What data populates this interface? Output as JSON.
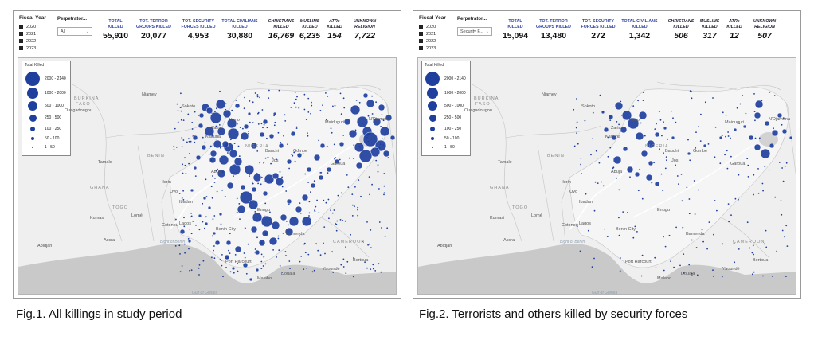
{
  "dashboards": [
    {
      "fiscal_year": {
        "title": "Fiscal Year",
        "years": [
          "2020",
          "2021",
          "2022",
          "2023"
        ]
      },
      "perpetrator": {
        "title": "Perpetrator...",
        "selected": "All"
      },
      "kpis": [
        {
          "label_lines": [
            "TOTAL",
            "KILLED"
          ],
          "value": "55,910",
          "italic": false
        },
        {
          "label_lines": [
            "TOT. TERROR",
            "GROUPS KILLED"
          ],
          "value": "20,077",
          "italic": false
        },
        {
          "label_lines": [
            "TOT. SECURITY",
            "FORCES KILLED"
          ],
          "value": "4,953",
          "italic": false
        },
        {
          "label_lines": [
            "TOTAL CIVILIANS",
            "KILLED"
          ],
          "value": "30,880",
          "italic": false
        },
        {
          "label_lines": [
            "CHRISTIANS",
            "KILLED"
          ],
          "value": "16,769",
          "italic": true
        },
        {
          "label_lines": [
            "MUSLIMS",
            "KILLED"
          ],
          "value": "6,235",
          "italic": true
        },
        {
          "label_lines": [
            "ATRs",
            "KILLED"
          ],
          "value": "154",
          "italic": true
        },
        {
          "label_lines": [
            "UNKNOWN",
            "RELIGION"
          ],
          "value": "7,722",
          "italic": true
        }
      ],
      "legend": {
        "title": "Total Killed",
        "bins": [
          "2000 - 2140",
          "1000 - 2000",
          "500 - 1000",
          "250 - 500",
          "100 - 250",
          "50 - 100",
          "1 - 50"
        ]
      },
      "map_labels": [
        "BURKINA",
        "FASO",
        "Ouagadougou",
        "Niamey",
        "Sokoto",
        "Kano",
        "Maiduguri",
        "N'Djamena",
        "NIGERIA",
        "Gombe",
        "Bauchi",
        "Jos",
        "Abuja",
        "Garoua",
        "Tamale",
        "GHANA",
        "BENIN",
        "TOGO",
        "Kumasi",
        "Accra",
        "Abidjan",
        "Ilorin",
        "Oyo",
        "Ibadan",
        "Lagos",
        "Cotonou",
        "Benin City",
        "Enugu",
        "Port Harcourt",
        "Bamenda",
        "CAMEROON",
        "Douala",
        "Yaoundé",
        "Bertoua",
        "Malabo",
        "Bight of Benin",
        "Gulf of Guinea",
        "Lomé",
        "Kaduna",
        "Zaria"
      ],
      "caption": "Fig.1. All killings in study period"
    },
    {
      "fiscal_year": {
        "title": "Fiscal Year",
        "years": [
          "2020",
          "2021",
          "2022",
          "2023"
        ]
      },
      "perpetrator": {
        "title": "Perpetrator...",
        "selected": "Security F..."
      },
      "kpis": [
        {
          "label_lines": [
            "TOTAL",
            "KILLED"
          ],
          "value": "15,094",
          "italic": false
        },
        {
          "label_lines": [
            "TOT. TERROR",
            "GROUPS KILLED"
          ],
          "value": "13,480",
          "italic": false
        },
        {
          "label_lines": [
            "TOT. SECURITY",
            "FORCES KILLED"
          ],
          "value": "272",
          "italic": false
        },
        {
          "label_lines": [
            "TOTAL CIVILIANS",
            "KILLED"
          ],
          "value": "1,342",
          "italic": false
        },
        {
          "label_lines": [
            "CHRISTIANS",
            "KILLED"
          ],
          "value": "506",
          "italic": true
        },
        {
          "label_lines": [
            "MUSLIMS",
            "KILLED"
          ],
          "value": "317",
          "italic": true
        },
        {
          "label_lines": [
            "ATRs",
            "KILLED"
          ],
          "value": "12",
          "italic": true
        },
        {
          "label_lines": [
            "UNKNOWN",
            "RELIGION"
          ],
          "value": "507",
          "italic": true
        }
      ],
      "legend": {
        "title": "Total Killed",
        "bins": [
          "2000 - 2140",
          "1000 - 2000",
          "500 - 1000",
          "250 - 500",
          "100 - 250",
          "50 - 100",
          "1 - 50"
        ]
      },
      "map_labels": [
        "BURKINA",
        "FASO",
        "Ouagadougou",
        "Niamey",
        "Sokoto",
        "Kano",
        "Maiduguri",
        "N'Djamena",
        "NIGERIA",
        "Gombe",
        "Bauchi",
        "Jos",
        "Abuja",
        "Garoua",
        "Tamale",
        "GHANA",
        "BENIN",
        "TOGO",
        "Kumasi",
        "Accra",
        "Abidjan",
        "Ilorin",
        "Oyo",
        "Ibadan",
        "Lagos",
        "Cotonou",
        "Benin City",
        "Enugu",
        "Port Harcourt",
        "Bamenda",
        "CAMEROON",
        "Douala",
        "Yaoundé",
        "Bertoua",
        "Malabo",
        "Bight of Benin",
        "Gulf of Guinea",
        "Lomé",
        "Kaduna",
        "Zaria"
      ],
      "caption": "Fig.2. Terrorists and others killed by security forces"
    }
  ],
  "colors": {
    "bubble": "#1f3f9f",
    "land": "#efefef",
    "sea": "#c9c9c9",
    "kpi_label": "#2b3fa0"
  }
}
